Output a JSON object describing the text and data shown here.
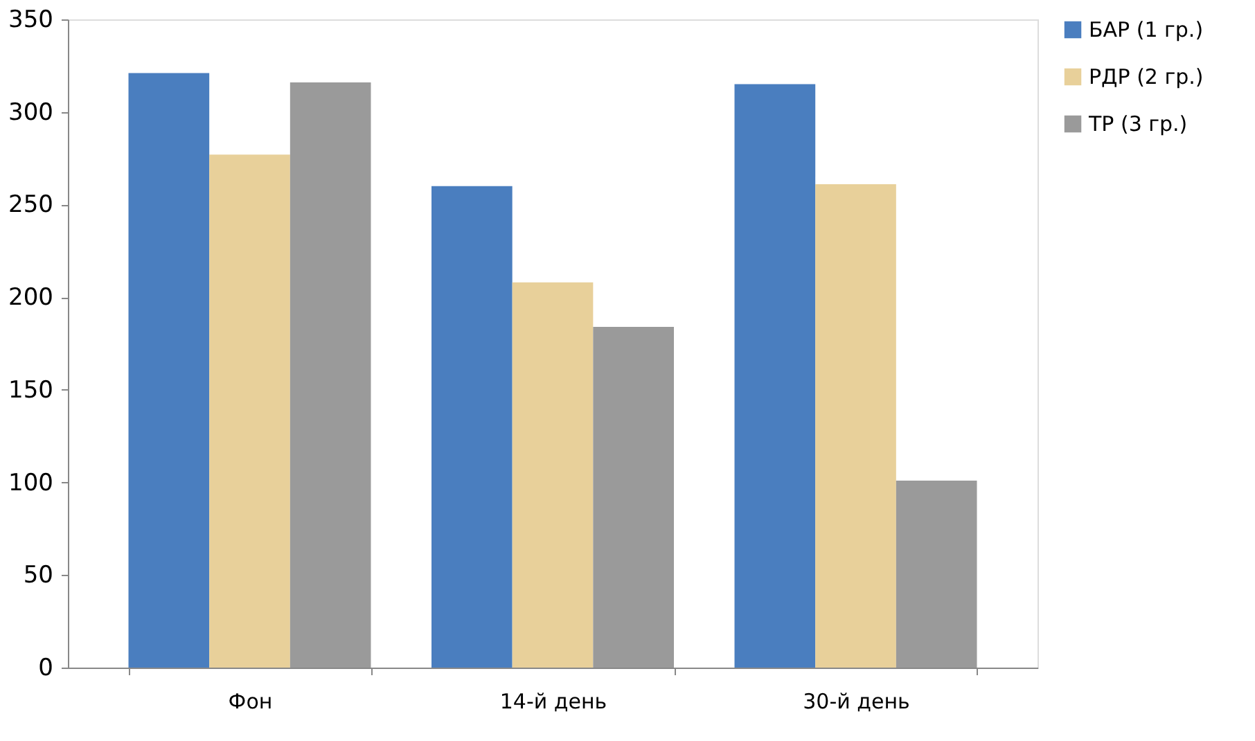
{
  "chart_data": {
    "type": "bar",
    "categories": [
      "Фон",
      "14-й день",
      "30-й день"
    ],
    "series": [
      {
        "name": "БАР (1 гр.)",
        "color": "#4a7ebf",
        "values": [
          321,
          260,
          315
        ]
      },
      {
        "name": "РДР (2 гр.)",
        "color": "#e8d09a",
        "values": [
          277,
          208,
          261
        ]
      },
      {
        "name": "ТР (3 гр.)",
        "color": "#9a9a9a",
        "values": [
          316,
          184,
          101
        ]
      }
    ],
    "ylim": [
      0,
      350
    ],
    "yticks": [
      0,
      50,
      100,
      150,
      200,
      250,
      300,
      350
    ],
    "grid": false,
    "legend": "right"
  }
}
